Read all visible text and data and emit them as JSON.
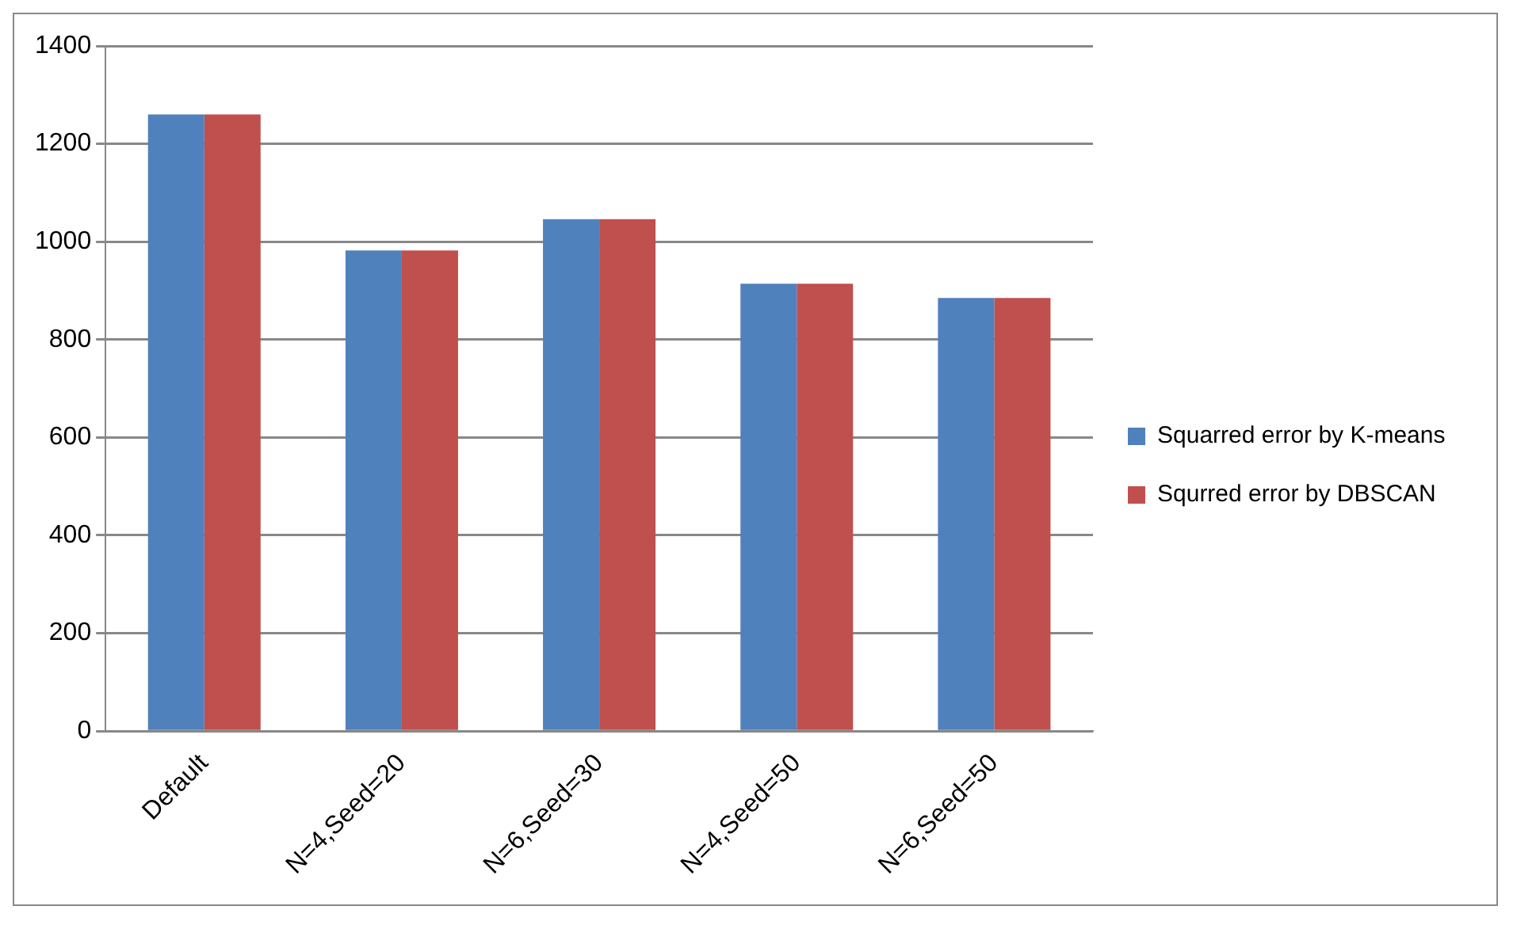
{
  "chart_data": {
    "type": "bar",
    "categories": [
      "Default",
      "N=4,Seed=20",
      "N=6,Seed=30",
      "N=4,Seed=50",
      "N=6,Seed=50"
    ],
    "series": [
      {
        "name": "Squarred error by K-means",
        "color": "#4f81bd",
        "values": [
          1260,
          982,
          1046,
          914,
          885
        ]
      },
      {
        "name": "Squrred error by DBSCAN",
        "color": "#c0504d",
        "values": [
          1260,
          982,
          1046,
          914,
          885
        ]
      }
    ],
    "ylim": [
      0,
      1400
    ],
    "yticks": [
      0,
      200,
      400,
      600,
      800,
      1000,
      1200,
      1400
    ],
    "grid": "y",
    "legend": "right"
  }
}
